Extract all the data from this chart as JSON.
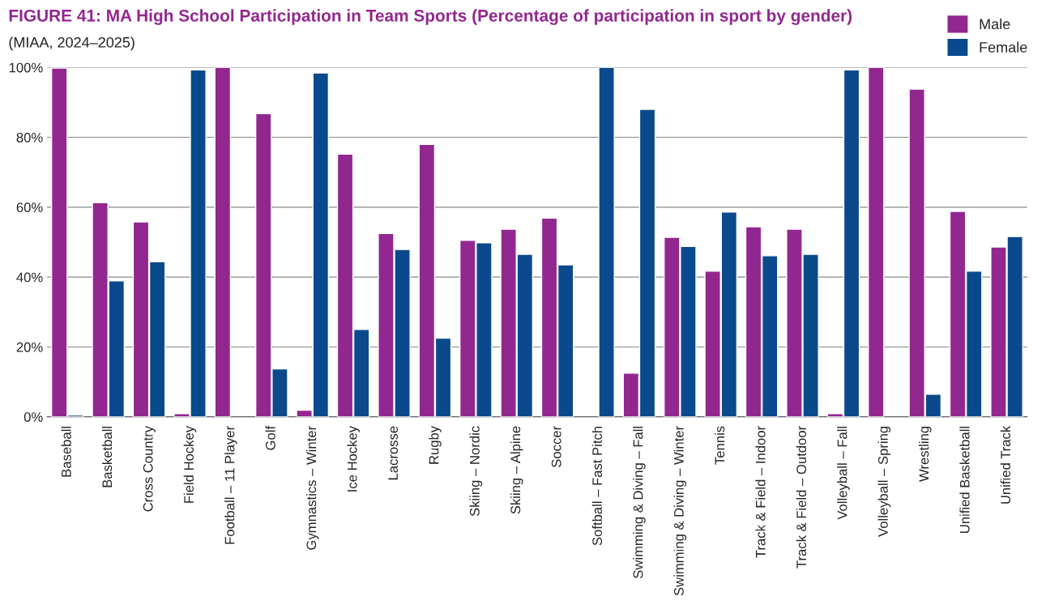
{
  "chart_data": {
    "type": "bar",
    "title": "FIGURE 41: MA High School Participation in Team Sports (Percentage of participation in sport by gender)",
    "subtitle": "(MIAA, 2024–2025)",
    "categories": [
      "Baseball",
      "Basketball",
      "Cross Country",
      "Field Hockey",
      "Football – 11 Player",
      "Golf",
      "Gymnastics – Winter",
      "Ice Hockey",
      "Lacrosse",
      "Rugby",
      "Skiing – Nordic",
      "Skiing – Alpine",
      "Soccer",
      "Softball – Fast Pitch",
      "Swimming & Diving – Fall",
      "Swimming & Diving – Winter",
      "Tennis",
      "Track & Field – Indoor",
      "Track & Field – Outdoor",
      "Volleyball – Fall",
      "Volleyball – Spring",
      "Wrestling",
      "Unified Basketball",
      "Unified Track"
    ],
    "series": [
      {
        "name": "Male",
        "color": "#92278f",
        "values": [
          99.8,
          61.3,
          55.8,
          0.9,
          100,
          86.8,
          1.9,
          75.2,
          52.5,
          78,
          50.5,
          53.7,
          56.9,
          null,
          12.5,
          51.4,
          41.7,
          54.4,
          53.7,
          0.9,
          100,
          93.8,
          58.8,
          48.6
        ]
      },
      {
        "name": "Female",
        "color": "#0a4a8c",
        "values": [
          0.5,
          38.9,
          44.4,
          99.3,
          null,
          13.7,
          98.4,
          25,
          47.9,
          22.5,
          49.8,
          46.5,
          43.5,
          100,
          88,
          48.8,
          58.6,
          46.1,
          46.5,
          99.3,
          null,
          6.5,
          41.7,
          51.6
        ]
      }
    ],
    "ylim": [
      0,
      100
    ],
    "yticks": [
      {
        "value": 0,
        "label": "0%"
      },
      {
        "value": 20,
        "label": "20%"
      },
      {
        "value": 40,
        "label": "40%"
      },
      {
        "value": 60,
        "label": "60%"
      },
      {
        "value": 80,
        "label": "80%"
      },
      {
        "value": 100,
        "label": "100%"
      }
    ],
    "grid": "y",
    "legend": "top right"
  }
}
